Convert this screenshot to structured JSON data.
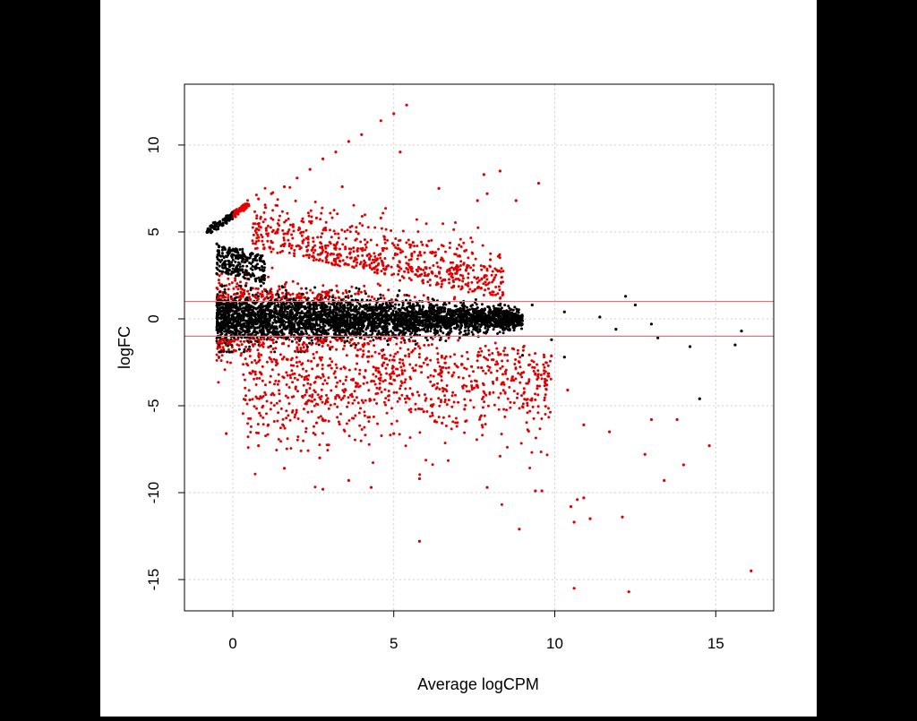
{
  "chart_data": {
    "type": "scatter",
    "title": "",
    "xlabel": "Average logCPM",
    "ylabel": "logFC",
    "xlim": [
      -1.5,
      16.8
    ],
    "ylim": [
      -16.8,
      13.5
    ],
    "x_ticks": [
      "0",
      "5",
      "10",
      "15"
    ],
    "x_tick_values": [
      0,
      5,
      10,
      15
    ],
    "y_ticks": [
      "-15",
      "-10",
      "-5",
      "0",
      "5",
      "10"
    ],
    "y_tick_values": [
      -15,
      -10,
      -5,
      0,
      5,
      10
    ],
    "grid": true,
    "hlines": [
      1,
      -1
    ],
    "hline_color": "#e8707a",
    "colors": {
      "not_significant": "#000000",
      "significant": "#e00000",
      "grid": "#cfcfcf"
    },
    "series": [
      {
        "color": "#000000",
        "points": [
          [
            -0.8,
            5.0
          ],
          [
            -0.6,
            5.3
          ],
          [
            -0.4,
            5.6
          ],
          [
            -0.2,
            5.9
          ],
          [
            -0.3,
            5.7
          ],
          [
            0.5,
            3.5
          ],
          [
            0.3,
            4.0
          ],
          [
            -0.5,
            2.6
          ],
          [
            1.8,
            -0.5
          ],
          [
            2.4,
            0.7
          ],
          [
            3.2,
            -0.3
          ],
          [
            5.0,
            0.2
          ],
          [
            8.6,
            -0.6
          ],
          [
            9.3,
            0.8
          ],
          [
            9.9,
            -1.2
          ],
          [
            10.3,
            0.4
          ],
          [
            11.4,
            0.1
          ],
          [
            11.9,
            -0.6
          ],
          [
            12.2,
            1.3
          ],
          [
            12.5,
            0.8
          ],
          [
            13.0,
            -0.3
          ],
          [
            13.2,
            -1.1
          ],
          [
            14.2,
            -1.6
          ],
          [
            14.5,
            -4.6
          ],
          [
            15.6,
            -1.5
          ],
          [
            15.8,
            -0.7
          ],
          [
            10.3,
            -2.2
          ],
          [
            9.0,
            -2.1
          ]
        ]
      },
      {
        "color": "#e00000",
        "points": [
          [
            0.2,
            6.2
          ],
          [
            0.5,
            6.5
          ],
          [
            0.8,
            6.9
          ],
          [
            1.2,
            7.2
          ],
          [
            1.6,
            7.6
          ],
          [
            2.0,
            8.1
          ],
          [
            2.4,
            8.6
          ],
          [
            2.8,
            9.2
          ],
          [
            3.2,
            9.6
          ],
          [
            3.6,
            10.2
          ],
          [
            4.0,
            10.6
          ],
          [
            4.6,
            11.4
          ],
          [
            5.0,
            11.8
          ],
          [
            5.4,
            12.3
          ],
          [
            5.2,
            9.6
          ],
          [
            7.8,
            8.3
          ],
          [
            8.3,
            8.5
          ],
          [
            8.8,
            6.8
          ],
          [
            9.5,
            7.8
          ],
          [
            6.4,
            7.5
          ],
          [
            7.6,
            6.8
          ],
          [
            7.9,
            7.2
          ],
          [
            3.4,
            7.6
          ],
          [
            2.6,
            5.8
          ],
          [
            3.9,
            4.9
          ],
          [
            4.6,
            5.8
          ],
          [
            5.6,
            4.4
          ],
          [
            7.2,
            3.9
          ],
          [
            8.0,
            3.4
          ],
          [
            0.8,
            -7.3
          ],
          [
            -0.2,
            -6.6
          ],
          [
            1.1,
            -6.1
          ],
          [
            1.6,
            -8.6
          ],
          [
            2.7,
            -8.0
          ],
          [
            2.8,
            -9.8
          ],
          [
            3.6,
            -9.3
          ],
          [
            4.3,
            -9.7
          ],
          [
            5.8,
            -9.2
          ],
          [
            5.8,
            -12.8
          ],
          [
            7.9,
            -9.7
          ],
          [
            8.9,
            -12.1
          ],
          [
            9.4,
            -9.9
          ],
          [
            9.6,
            -9.9
          ],
          [
            10.5,
            -10.8
          ],
          [
            10.6,
            -11.7
          ],
          [
            10.7,
            -10.4
          ],
          [
            10.9,
            -10.3
          ],
          [
            11.1,
            -11.5
          ],
          [
            10.6,
            -15.5
          ],
          [
            12.1,
            -11.4
          ],
          [
            12.3,
            -15.7
          ],
          [
            12.8,
            -7.8
          ],
          [
            13.0,
            -5.8
          ],
          [
            13.8,
            -5.8
          ],
          [
            14.0,
            -8.4
          ],
          [
            13.4,
            -9.3
          ],
          [
            14.8,
            -7.3
          ],
          [
            16.1,
            -14.5
          ],
          [
            10.9,
            -6.1
          ],
          [
            11.7,
            -6.5
          ],
          [
            10.4,
            -4.1
          ],
          [
            8.3,
            -7.9
          ],
          [
            6.5,
            -6.0
          ],
          [
            7.2,
            -5.2
          ],
          [
            5.0,
            -6.6
          ]
        ]
      }
    ]
  }
}
